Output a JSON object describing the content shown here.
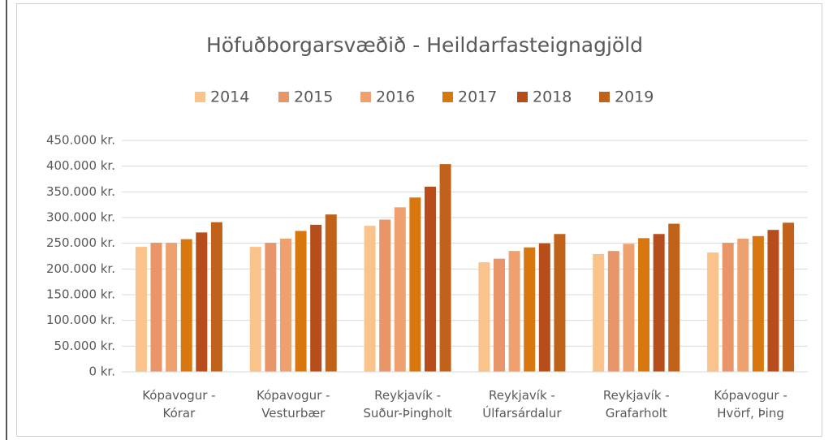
{
  "chart_data": {
    "type": "bar",
    "title": "Höfuðborgarsvæðið - Heildarfasteignagjöld",
    "categories": [
      "Kópavogur -\nKórar",
      "Kópavogur -\nVesturbær",
      "Reykjavík -\nSuður-Þingholt",
      "Reykjavík -\nÚlfarsárdalur",
      "Reykjavík -\nGrafarholt",
      "Kópavogur -\nHvörf, Þing"
    ],
    "series": [
      {
        "name": "2014",
        "color": "#f9c38b",
        "values": [
          243000,
          243000,
          284000,
          213000,
          229000,
          232000
        ]
      },
      {
        "name": "2015",
        "color": "#e8956a",
        "values": [
          251000,
          251000,
          296000,
          220000,
          235000,
          251000
        ]
      },
      {
        "name": "2016",
        "color": "#eea16f",
        "values": [
          251000,
          259000,
          320000,
          235000,
          249000,
          259000
        ]
      },
      {
        "name": "2017",
        "color": "#d9770f",
        "values": [
          258000,
          274000,
          339000,
          242000,
          260000,
          264000
        ]
      },
      {
        "name": "2018",
        "color": "#b84d1c",
        "values": [
          271000,
          286000,
          360000,
          250000,
          268000,
          276000
        ]
      },
      {
        "name": "2019",
        "color": "#c0621a",
        "values": [
          291000,
          306000,
          404000,
          268000,
          288000,
          290000
        ]
      }
    ],
    "ylim": [
      0,
      450000
    ],
    "yticks": [
      {
        "value": 0,
        "label": "0 kr."
      },
      {
        "value": 50000,
        "label": "50.000 kr."
      },
      {
        "value": 100000,
        "label": "100.000 kr."
      },
      {
        "value": 150000,
        "label": "150.000 kr."
      },
      {
        "value": 200000,
        "label": "200.000 kr."
      },
      {
        "value": 250000,
        "label": "250.000 kr."
      },
      {
        "value": 300000,
        "label": "300.000 kr."
      },
      {
        "value": 350000,
        "label": "350.000 kr."
      },
      {
        "value": 400000,
        "label": "400.000 kr."
      },
      {
        "value": 450000,
        "label": "450.000 kr."
      }
    ],
    "grid": true,
    "legend": "top"
  }
}
